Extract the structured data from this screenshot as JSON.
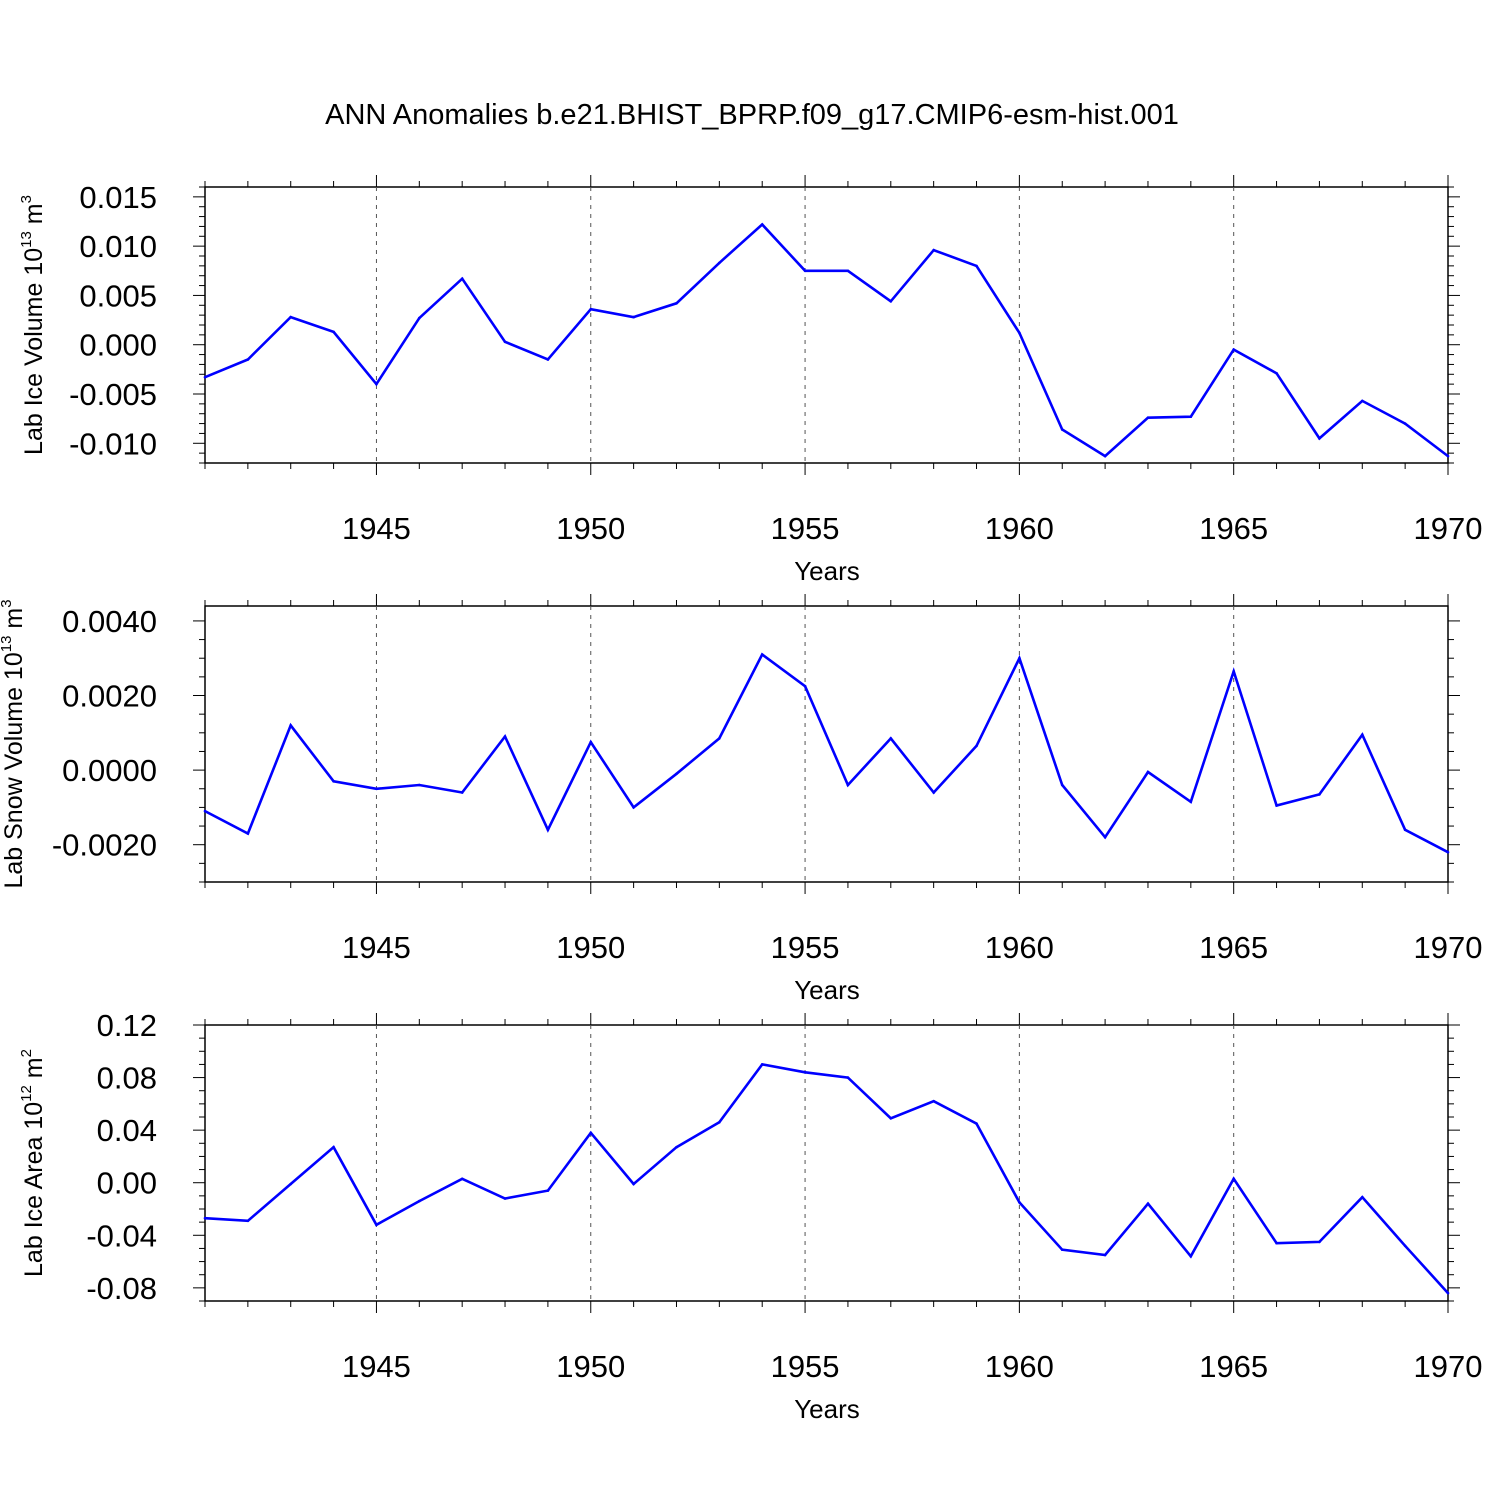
{
  "title": "ANN Anomalies b.e21.BHIST_BPRP.f09_g17.CMIP6-esm-hist.001",
  "line_color": "#0000ff",
  "chart_data": [
    {
      "type": "line",
      "ylabel_main": "Lab Ice Volume 10",
      "ylabel_exp": "13",
      "ylabel_unit": "m",
      "ylabel_unit_exp": "3",
      "xlabel": "Years",
      "xlim": [
        1941,
        1970
      ],
      "ylim": [
        -0.012,
        0.016
      ],
      "yticks": [
        -0.01,
        -0.005,
        0.0,
        0.005,
        0.01,
        0.015
      ],
      "ytick_labels": [
        "-0.010",
        "-0.005",
        "0.000",
        "0.005",
        "0.010",
        "0.015"
      ],
      "yminor_step": 0.001,
      "xticks": [
        1945,
        1950,
        1955,
        1960,
        1965,
        1970
      ],
      "xtick_labels": [
        "1945",
        "1950",
        "1955",
        "1960",
        "1965",
        "1970"
      ],
      "x": [
        1941,
        1942,
        1943,
        1944,
        1945,
        1946,
        1947,
        1948,
        1949,
        1950,
        1951,
        1952,
        1953,
        1954,
        1955,
        1956,
        1957,
        1958,
        1959,
        1960,
        1961,
        1962,
        1963,
        1964,
        1965,
        1966,
        1967,
        1968,
        1969,
        1970
      ],
      "values": [
        -0.0033,
        -0.0015,
        0.0028,
        0.0013,
        -0.004,
        0.0027,
        0.0067,
        0.0003,
        -0.0015,
        0.0036,
        0.0028,
        0.0042,
        0.0083,
        0.0122,
        0.0075,
        0.0075,
        0.0044,
        0.0096,
        0.008,
        0.0012,
        -0.0086,
        -0.0113,
        -0.0074,
        -0.0073,
        -0.0005,
        -0.0029,
        -0.0095,
        -0.0057,
        -0.008,
        -0.0113
      ]
    },
    {
      "type": "line",
      "ylabel_main": "Lab Snow Volume 10",
      "ylabel_exp": "13",
      "ylabel_unit": "m",
      "ylabel_unit_exp": "3",
      "xlabel": "Years",
      "xlim": [
        1941,
        1970
      ],
      "ylim": [
        -0.003,
        0.0044
      ],
      "yticks": [
        -0.002,
        0.0,
        0.002,
        0.004
      ],
      "ytick_labels": [
        "-0.0020",
        "0.0000",
        "0.0020",
        "0.0040"
      ],
      "yminor_step": 0.0005,
      "xticks": [
        1945,
        1950,
        1955,
        1960,
        1965,
        1970
      ],
      "xtick_labels": [
        "1945",
        "1950",
        "1955",
        "1960",
        "1965",
        "1970"
      ],
      "x": [
        1941,
        1942,
        1943,
        1944,
        1945,
        1946,
        1947,
        1948,
        1949,
        1950,
        1951,
        1952,
        1953,
        1954,
        1955,
        1956,
        1957,
        1958,
        1959,
        1960,
        1961,
        1962,
        1963,
        1964,
        1965,
        1966,
        1967,
        1968,
        1969,
        1970
      ],
      "values": [
        -0.0011,
        -0.0017,
        0.0012,
        -0.0003,
        -0.0005,
        -0.0004,
        -0.0006,
        0.0009,
        -0.0016,
        0.00075,
        -0.001,
        -0.0001,
        0.00085,
        0.0031,
        0.00225,
        -0.0004,
        0.00085,
        -0.0006,
        0.00065,
        0.003,
        -0.0004,
        -0.0018,
        -5e-05,
        -0.00085,
        0.00265,
        -0.00095,
        -0.00065,
        0.00095,
        -0.0016,
        -0.0022
      ]
    },
    {
      "type": "line",
      "ylabel_main": "Lab Ice Area 10",
      "ylabel_exp": "12",
      "ylabel_unit": "m",
      "ylabel_unit_exp": "2",
      "xlabel": "Years",
      "xlim": [
        1941,
        1970
      ],
      "ylim": [
        -0.09,
        0.12
      ],
      "yticks": [
        -0.08,
        -0.04,
        0.0,
        0.04,
        0.08,
        0.12
      ],
      "ytick_labels": [
        "-0.08",
        "-0.04",
        "0.00",
        "0.04",
        "0.08",
        "0.12"
      ],
      "yminor_step": 0.01,
      "xticks": [
        1945,
        1950,
        1955,
        1960,
        1965,
        1970
      ],
      "xtick_labels": [
        "1945",
        "1950",
        "1955",
        "1960",
        "1965",
        "1970"
      ],
      "x": [
        1941,
        1942,
        1943,
        1944,
        1945,
        1946,
        1947,
        1948,
        1949,
        1950,
        1951,
        1952,
        1953,
        1954,
        1955,
        1956,
        1957,
        1958,
        1959,
        1960,
        1961,
        1962,
        1963,
        1964,
        1965,
        1966,
        1967,
        1968,
        1969,
        1970
      ],
      "values": [
        -0.027,
        -0.029,
        -0.001,
        0.027,
        -0.032,
        -0.014,
        0.003,
        -0.012,
        -0.006,
        0.038,
        -0.001,
        0.027,
        0.046,
        0.09,
        0.084,
        0.08,
        0.049,
        0.062,
        0.045,
        -0.015,
        -0.051,
        -0.055,
        -0.016,
        -0.056,
        0.003,
        -0.046,
        -0.045,
        -0.011,
        -0.048,
        -0.084
      ]
    }
  ]
}
